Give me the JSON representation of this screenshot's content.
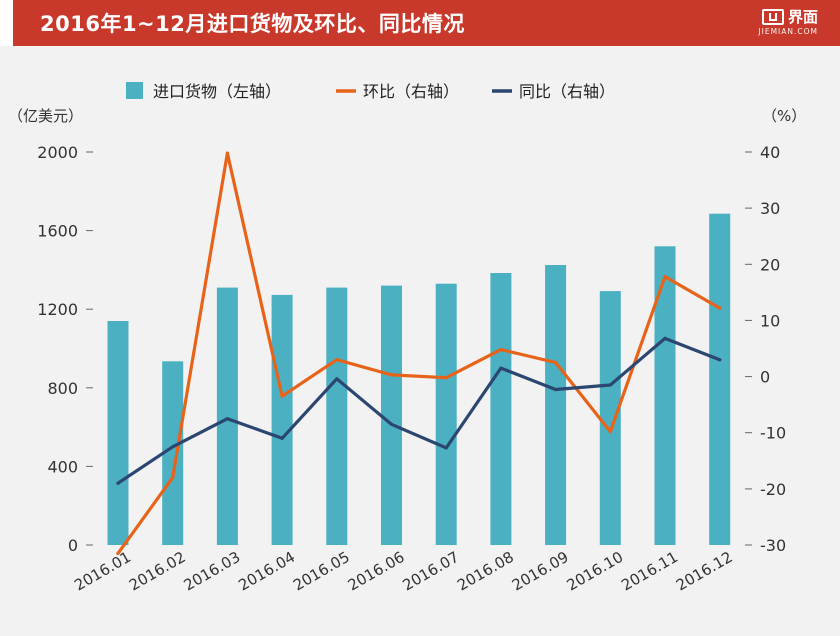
{
  "header": {
    "title": "2016年1~12月进口货物及环比、同比情况",
    "brand_name": "界面",
    "brand_domain": "JIEMIAN.COM"
  },
  "colors": {
    "header_bg": "#c9392b",
    "bar": "#4ab0c2",
    "mom_line": "#e8631a",
    "yoy_line": "#2b4670",
    "axis_text": "#333333",
    "background": "#f2f2f2"
  },
  "chart_data": {
    "type": "bar",
    "title": "2016年1~12月进口货物及环比、同比情况",
    "categories": [
      "2016.01",
      "2016.02",
      "2016.03",
      "2016.04",
      "2016.05",
      "2016.06",
      "2016.07",
      "2016.08",
      "2016.09",
      "2016.10",
      "2016.11",
      "2016.12"
    ],
    "left_axis": {
      "unit_label": "（亿美元）",
      "range": [
        0,
        2000
      ],
      "ticks": [
        0,
        400,
        800,
        1200,
        1600,
        2000
      ]
    },
    "right_axis": {
      "unit_label": "（%）",
      "range": [
        -30,
        40
      ],
      "ticks": [
        -30,
        -20,
        -10,
        0,
        10,
        20,
        30,
        40
      ]
    },
    "series": [
      {
        "name": "进口货物（左轴）",
        "type": "bar",
        "axis": "left",
        "color": "#4ab0c2",
        "values": [
          1140,
          935,
          1310,
          1273,
          1310,
          1320,
          1330,
          1384,
          1425,
          1292,
          1520,
          1686
        ]
      },
      {
        "name": "环比（右轴）",
        "type": "line",
        "axis": "right",
        "color": "#e8631a",
        "values": [
          -31.5,
          -18.0,
          39.8,
          -3.5,
          3.0,
          0.3,
          -0.2,
          4.8,
          2.5,
          -9.8,
          17.8,
          12.2
        ]
      },
      {
        "name": "同比（右轴）",
        "type": "line",
        "axis": "right",
        "color": "#2b4670",
        "values": [
          -19.0,
          -12.5,
          -7.5,
          -11.0,
          -0.4,
          -8.5,
          -12.7,
          1.5,
          -2.3,
          -1.5,
          6.8,
          3.0
        ]
      }
    ]
  }
}
